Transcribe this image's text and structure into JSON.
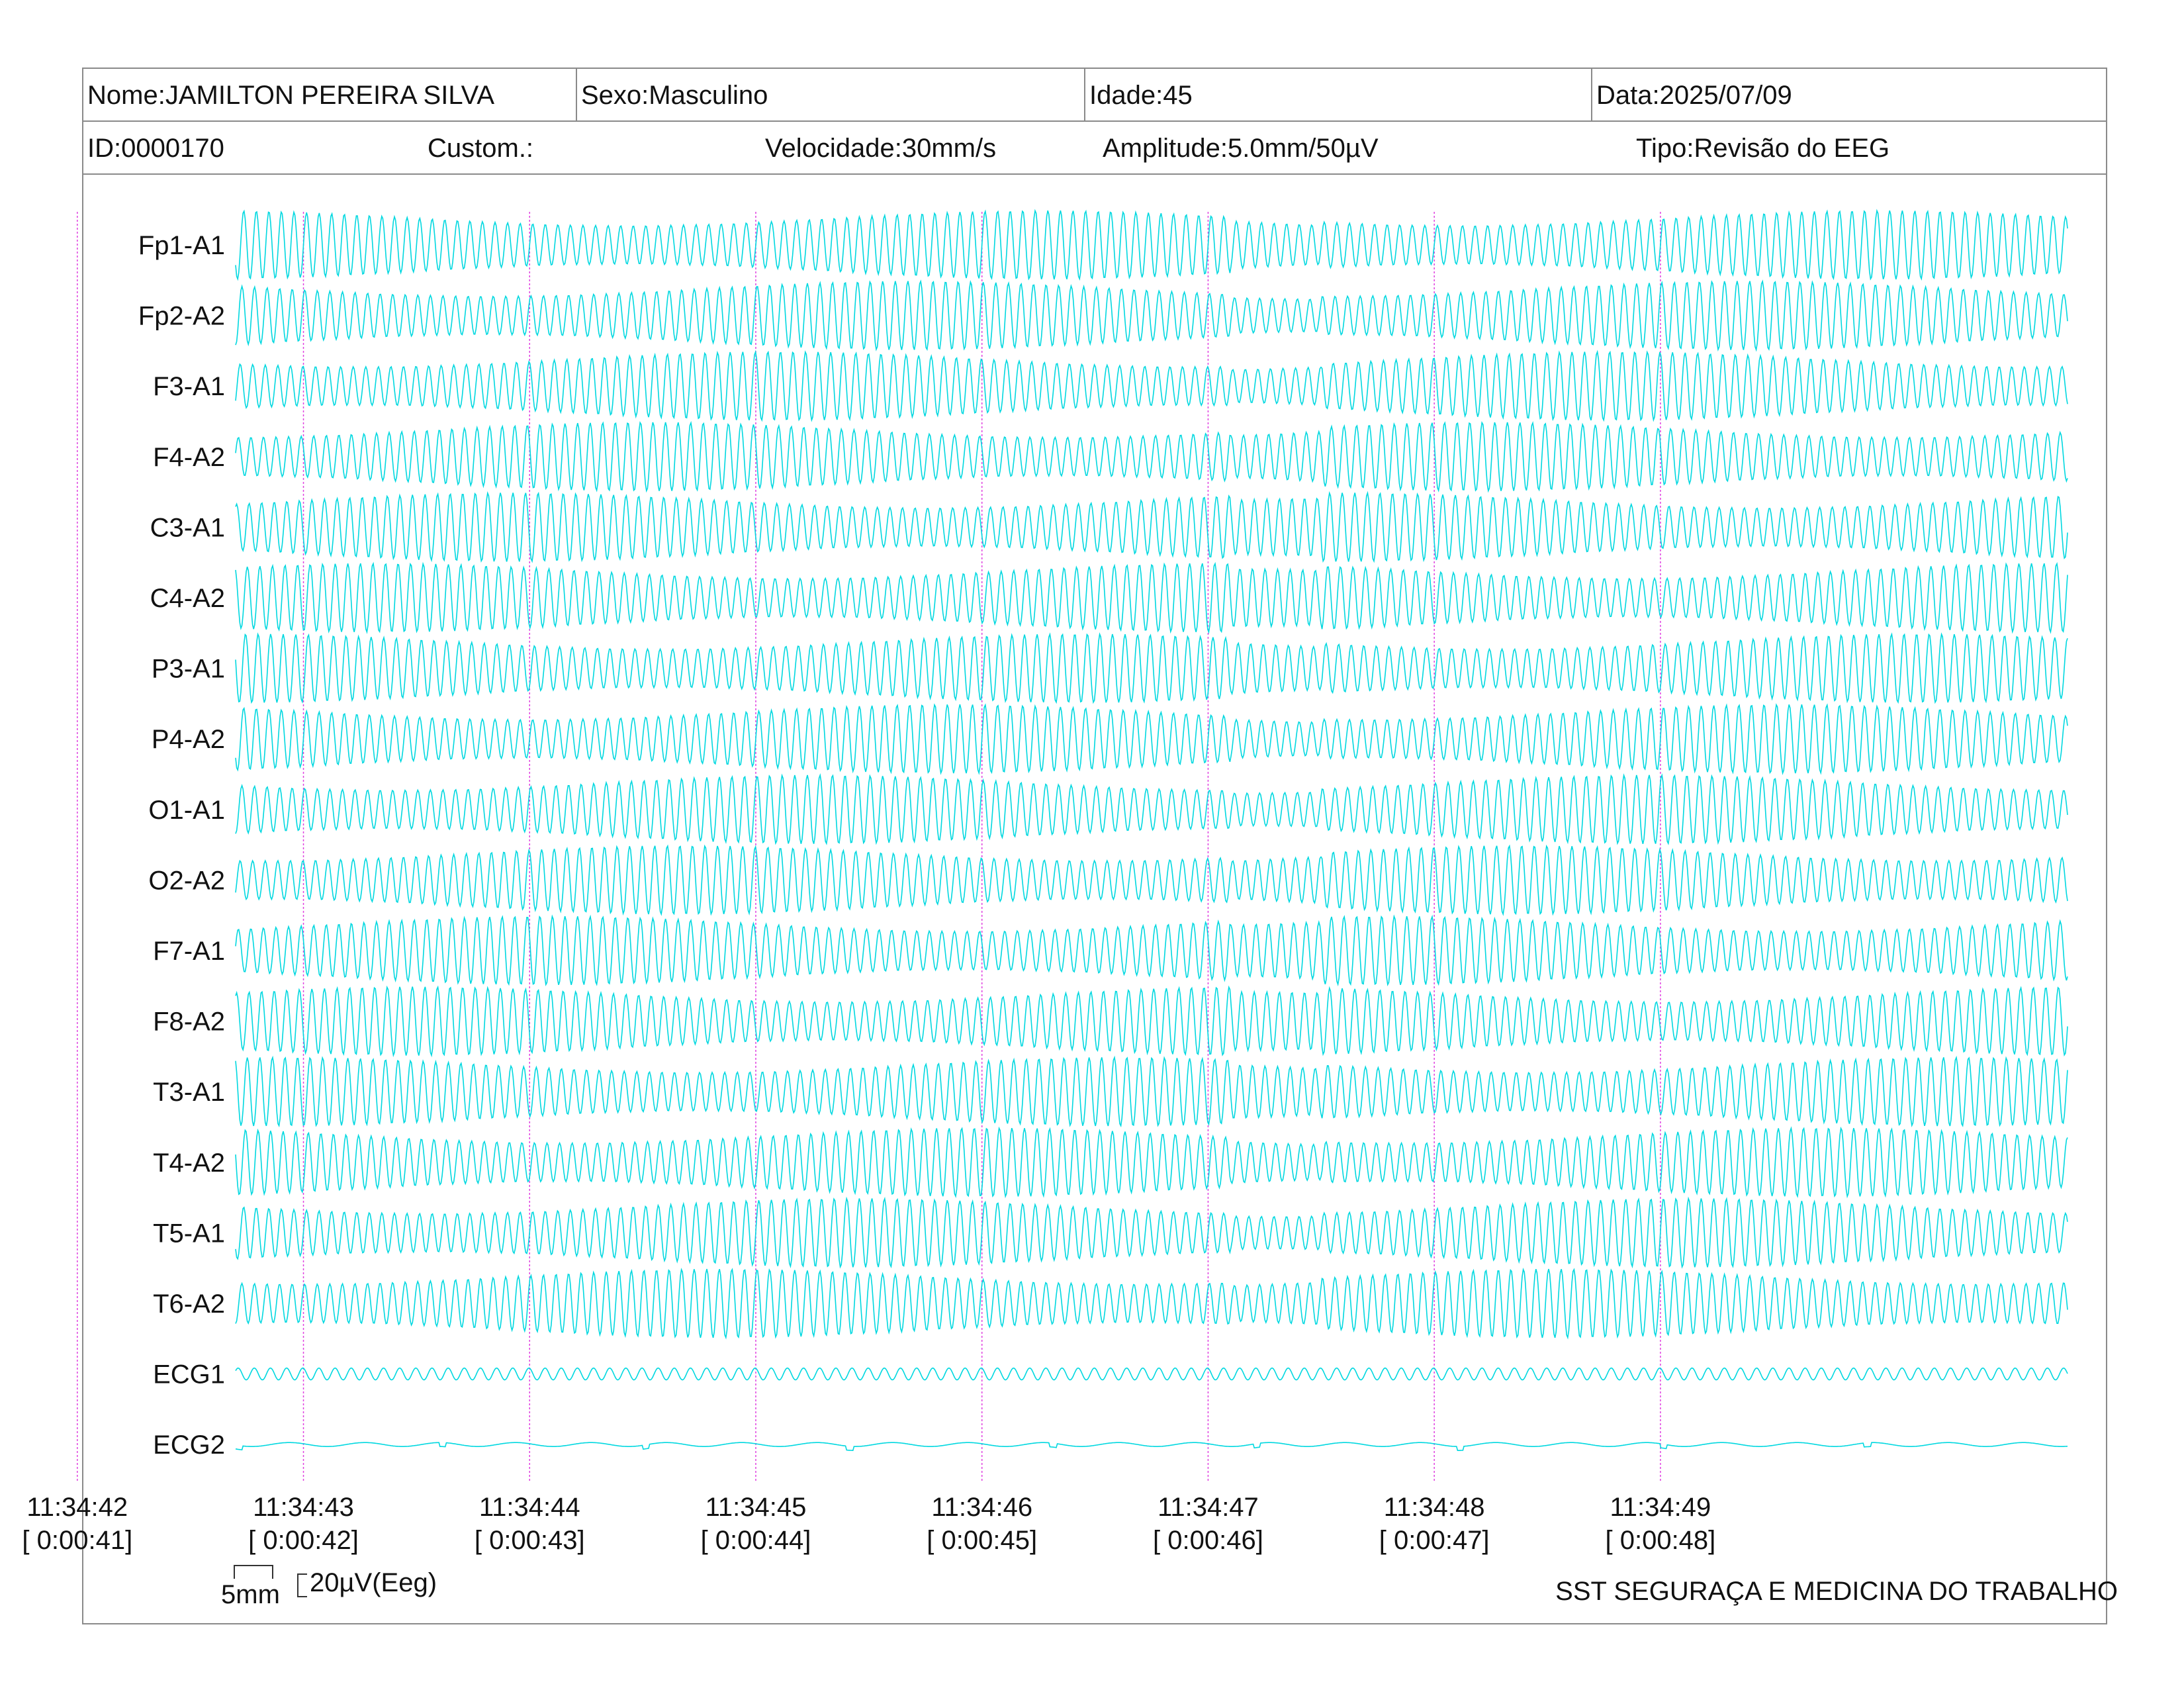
{
  "header": {
    "nome": "Nome:JAMILTON PEREIRA SILVA",
    "sexo": "Sexo:Masculino",
    "idade": "Idade:45",
    "data": "Data:2025/07/09",
    "id": "ID:0000170",
    "custom": "Custom.:",
    "velocidade": "Velocidade:30mm/s",
    "amplitude": "Amplitude:5.0mm/50µV",
    "tipo": "Tipo:Revisão do EEG"
  },
  "chart_data": {
    "type": "line",
    "channels": [
      "Fp1-A1",
      "Fp2-A2",
      "F3-A1",
      "F4-A2",
      "C3-A1",
      "C4-A2",
      "P3-A1",
      "P4-A2",
      "O1-A1",
      "O2-A2",
      "F7-A1",
      "F8-A2",
      "T3-A1",
      "T4-A2",
      "T5-A1",
      "T6-A2",
      "ECG1",
      "ECG2"
    ],
    "time_marks": [
      {
        "clock": "11:34:42",
        "elapsed": "[ 0:00:41]"
      },
      {
        "clock": "11:34:43",
        "elapsed": "[ 0:00:42]"
      },
      {
        "clock": "11:34:44",
        "elapsed": "[ 0:00:43]"
      },
      {
        "clock": "11:34:45",
        "elapsed": "[ 0:00:44]"
      },
      {
        "clock": "11:34:46",
        "elapsed": "[ 0:00:45]"
      },
      {
        "clock": "11:34:47",
        "elapsed": "[ 0:00:46]"
      },
      {
        "clock": "11:34:48",
        "elapsed": "[ 0:00:47]"
      },
      {
        "clock": "11:34:49",
        "elapsed": "[ 0:00:48]"
      }
    ],
    "x_range_seconds": [
      41.7,
      49.8
    ],
    "eeg_frequency_hz": 18,
    "trace_color": "#00d8e0",
    "marker_color": "#e040e0"
  },
  "calibration": {
    "time_label": "5mm",
    "amplitude_label": "20µV(Eeg)"
  },
  "footer": {
    "organization": "SST SEGURAÇA E MEDICINA DO TRABALHO"
  }
}
